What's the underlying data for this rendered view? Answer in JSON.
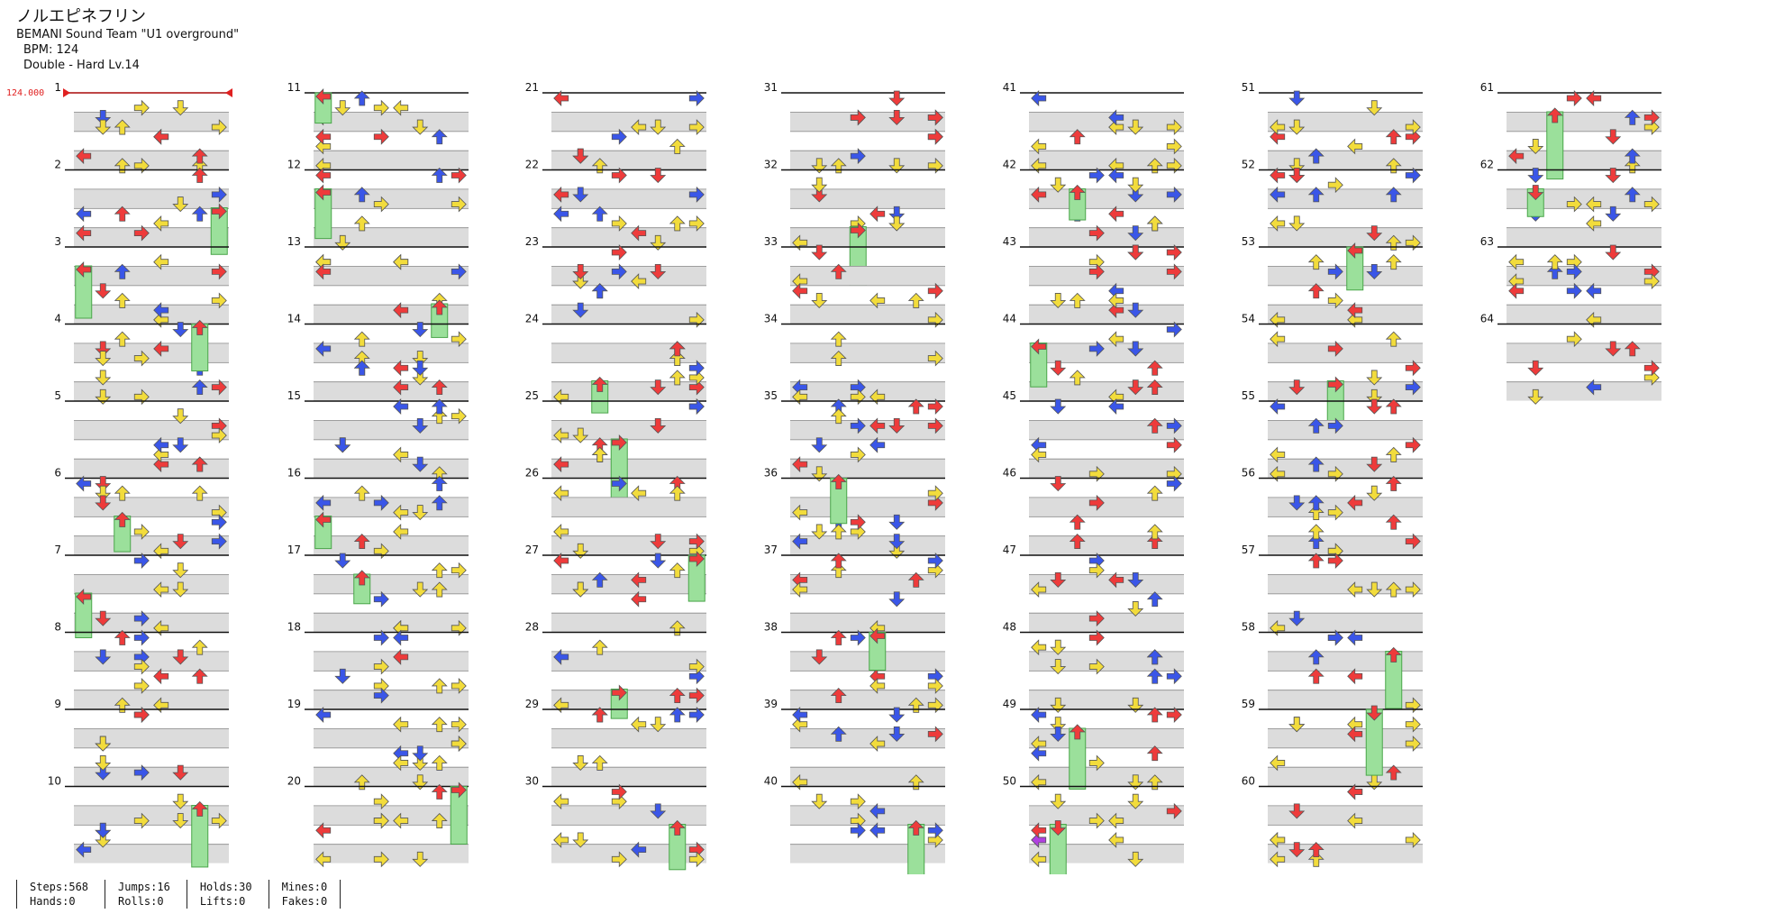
{
  "song": {
    "title": "ノルエピネフリン",
    "artist": "BEMANI Sound Team \"U1 overground\"",
    "bpm_text": "BPM: 124",
    "difficulty_text": "Double - Hard  Lv.14"
  },
  "bpm_marker": "124.000",
  "measure_numbers": [
    "1",
    "2",
    "3",
    "4",
    "5",
    "6",
    "7",
    "8",
    "9",
    "10",
    "11",
    "12",
    "13",
    "14",
    "15",
    "16",
    "17",
    "18",
    "19",
    "20",
    "21",
    "22",
    "23",
    "24",
    "25",
    "26",
    "27",
    "28",
    "29",
    "30",
    "31",
    "32",
    "33",
    "34",
    "35",
    "36",
    "37",
    "38",
    "39",
    "40",
    "41",
    "42",
    "43",
    "44",
    "45",
    "46",
    "47",
    "48",
    "49",
    "50",
    "51",
    "52",
    "53",
    "54",
    "55",
    "56",
    "57",
    "58",
    "59",
    "60",
    "61",
    "62",
    "63",
    "64"
  ],
  "icons": {
    "arrow": "arrow-icon",
    "hold": "hold-icon",
    "bpm": "bpm-line-icon"
  },
  "colors": {
    "red": "#ee3b3b",
    "blue": "#3a56e8",
    "yellow": "#f2dc3c",
    "purple": "#b040e0",
    "hold": "#9be09b",
    "band": "#dcdcdc",
    "bar": "#111111",
    "bpm": "#e02020"
  },
  "stats": [
    {
      "a": "Steps:568",
      "b": "Hands:0"
    },
    {
      "a": "Jumps:16",
      "b": "Rolls:0"
    },
    {
      "a": "Holds:30",
      "b": "Lifts:0"
    },
    {
      "a": "Mines:0",
      "b": "Fakes:0"
    }
  ]
}
